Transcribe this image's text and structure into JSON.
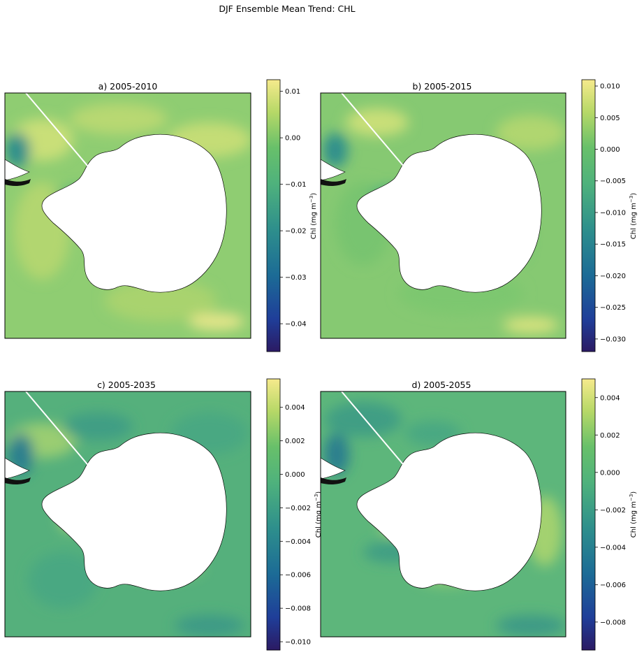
{
  "figure": {
    "suptitle": "DJF Ensemble Mean Trend: CHL"
  },
  "colors": {
    "colormap": [
      "#2b1a63",
      "#1f3e99",
      "#1c6b96",
      "#2e8f8c",
      "#4fb27c",
      "#68c06a",
      "#b6d867",
      "#f6ea8c"
    ],
    "land": "#ffffff",
    "coast": "#000000",
    "frame": "#000000"
  },
  "chart_data": [
    {
      "type": "heatmap",
      "title": "a) 2005-2010",
      "colorbar": {
        "label": "Chl (mg m",
        "label_sup": "−3",
        "label_end": ")",
        "range": [
          -0.046,
          0.0125
        ],
        "ticks": [
          0.01,
          0.0,
          -0.01,
          -0.02,
          -0.03,
          -0.04
        ],
        "tick_labels": [
          "0.01",
          "0.00",
          "−0.01",
          "−0.02",
          "−0.03",
          "−0.04"
        ]
      }
    },
    {
      "type": "heatmap",
      "title": "b) 2005-2015",
      "colorbar": {
        "label": "Chl (mg m",
        "label_sup": "−3",
        "label_end": ")",
        "range": [
          -0.032,
          0.011
        ],
        "ticks": [
          0.01,
          0.005,
          0.0,
          -0.005,
          -0.01,
          -0.015,
          -0.02,
          -0.025,
          -0.03
        ],
        "tick_labels": [
          "0.010",
          "0.005",
          "0.000",
          "−0.005",
          "−0.010",
          "−0.015",
          "−0.020",
          "−0.025",
          "−0.030"
        ]
      }
    },
    {
      "type": "heatmap",
      "title": "c) 2005-2035",
      "colorbar": {
        "label": "Chl (mg m",
        "label_sup": "−3",
        "label_end": ")",
        "range": [
          -0.0105,
          0.0057
        ],
        "ticks": [
          0.004,
          0.002,
          0.0,
          -0.002,
          -0.004,
          -0.006,
          -0.008,
          -0.01
        ],
        "tick_labels": [
          "0.004",
          "0.002",
          "0.000",
          "−0.002",
          "−0.004",
          "−0.006",
          "−0.008",
          "−0.010"
        ]
      }
    },
    {
      "type": "heatmap",
      "title": "d) 2005-2055",
      "colorbar": {
        "label": "Chl (mg m",
        "label_sup": "−3",
        "label_end": ")",
        "range": [
          -0.0095,
          0.005
        ],
        "ticks": [
          0.004,
          0.002,
          0.0,
          -0.002,
          -0.004,
          -0.006,
          -0.008
        ],
        "tick_labels": [
          "0.004",
          "0.002",
          "0.000",
          "−0.002",
          "−0.004",
          "−0.006",
          "−0.008"
        ]
      }
    }
  ]
}
